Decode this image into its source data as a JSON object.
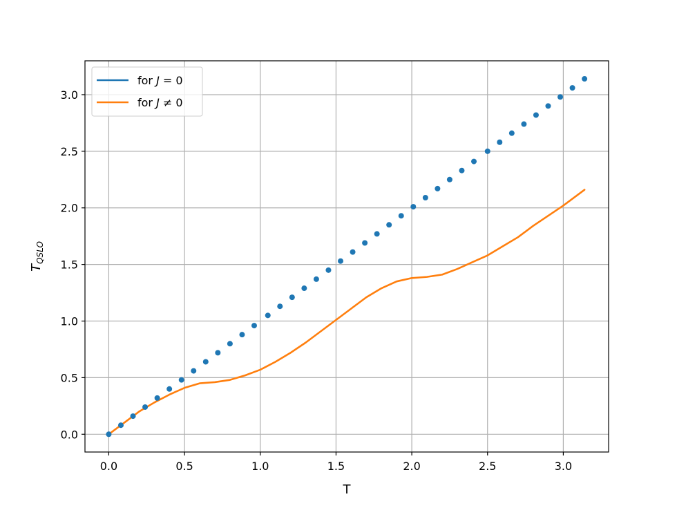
{
  "chart_data": {
    "type": "line",
    "xlabel": "T",
    "ylabel": "T",
    "ylabel_subscript": "QSLO",
    "xlim": [
      -0.157,
      3.299
    ],
    "ylim": [
      -0.157,
      3.299
    ],
    "xticks": [
      0.0,
      0.5,
      1.0,
      1.5,
      2.0,
      2.5,
      3.0
    ],
    "yticks": [
      0.0,
      0.5,
      1.0,
      1.5,
      2.0,
      2.5,
      3.0
    ],
    "xtick_labels": [
      "0.0",
      "0.5",
      "1.0",
      "1.5",
      "2.0",
      "2.5",
      "3.0"
    ],
    "ytick_labels": [
      "0.0",
      "0.5",
      "1.0",
      "1.5",
      "2.0",
      "2.5",
      "3.0"
    ],
    "grid": true,
    "legend_position": "top-left",
    "series": [
      {
        "name": "for J = 0",
        "legend_prefix": "for ",
        "legend_var": "J",
        "legend_op": " = ",
        "legend_val": "0",
        "color": "#1f77b4",
        "marker": "dot",
        "x": [
          0.0,
          0.08,
          0.16,
          0.24,
          0.32,
          0.4,
          0.48,
          0.56,
          0.64,
          0.72,
          0.8,
          0.88,
          0.96,
          1.05,
          1.13,
          1.21,
          1.29,
          1.37,
          1.45,
          1.53,
          1.61,
          1.69,
          1.77,
          1.85,
          1.93,
          2.01,
          2.09,
          2.17,
          2.25,
          2.33,
          2.41,
          2.5,
          2.58,
          2.66,
          2.74,
          2.82,
          2.9,
          2.98,
          3.06,
          3.14
        ],
        "y": [
          0.0,
          0.08,
          0.16,
          0.24,
          0.32,
          0.4,
          0.48,
          0.56,
          0.64,
          0.72,
          0.8,
          0.88,
          0.96,
          1.05,
          1.13,
          1.21,
          1.29,
          1.37,
          1.45,
          1.53,
          1.61,
          1.69,
          1.77,
          1.85,
          1.93,
          2.01,
          2.09,
          2.17,
          2.25,
          2.33,
          2.41,
          2.5,
          2.58,
          2.66,
          2.74,
          2.82,
          2.9,
          2.98,
          3.06,
          3.14
        ]
      },
      {
        "name": "for J ≠ 0",
        "legend_prefix": "for ",
        "legend_var": "J",
        "legend_op": " ≠ ",
        "legend_val": "0",
        "color": "#ff7f0e",
        "marker": "line",
        "x": [
          0.0,
          0.1,
          0.2,
          0.3,
          0.4,
          0.5,
          0.6,
          0.7,
          0.8,
          0.9,
          1.0,
          1.1,
          1.2,
          1.3,
          1.4,
          1.5,
          1.6,
          1.7,
          1.8,
          1.9,
          2.0,
          2.1,
          2.2,
          2.3,
          2.4,
          2.5,
          2.6,
          2.7,
          2.8,
          2.9,
          3.0,
          3.14
        ],
        "y": [
          0.0,
          0.1,
          0.2,
          0.28,
          0.35,
          0.41,
          0.45,
          0.46,
          0.48,
          0.52,
          0.57,
          0.64,
          0.72,
          0.81,
          0.91,
          1.01,
          1.11,
          1.21,
          1.29,
          1.35,
          1.38,
          1.39,
          1.41,
          1.46,
          1.52,
          1.58,
          1.66,
          1.74,
          1.84,
          1.93,
          2.02,
          2.16
        ]
      }
    ]
  }
}
